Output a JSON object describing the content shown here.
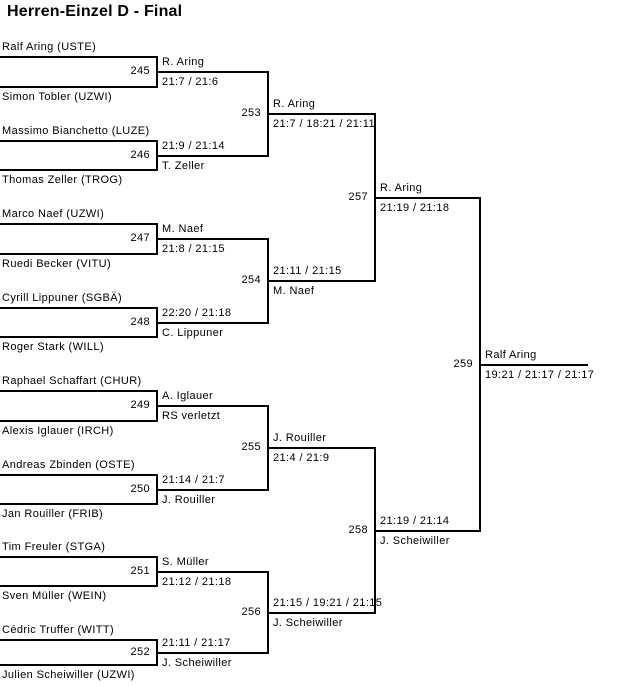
{
  "title": "Herren-Einzel D - Final",
  "colors": {
    "line": "#000000",
    "text": "#000000",
    "background": "#ffffff"
  },
  "bracket": {
    "players": [
      {
        "label": "Ralf Aring (USTE)"
      },
      {
        "label": "Simon Tobler (UZWI)"
      },
      {
        "label": "Massimo Bianchetto (LUZE)"
      },
      {
        "label": "Thomas Zeller (TROG)"
      },
      {
        "label": "Marco Naef (UZWI)"
      },
      {
        "label": "Ruedi Becker (VITU)"
      },
      {
        "label": "Cyrill Lippuner (SGBÄ)"
      },
      {
        "label": "Roger Stark (WILL)"
      },
      {
        "label": "Raphael Schaffart (CHUR)"
      },
      {
        "label": "Alexis Iglauer (IRCH)"
      },
      {
        "label": "Andreas Zbinden (OSTE)"
      },
      {
        "label": "Jan Rouiller (FRIB)"
      },
      {
        "label": "Tim Freuler (STGA)"
      },
      {
        "label": "Sven Müller (WEIN)"
      },
      {
        "label": "Cédric Truffer (WITT)"
      },
      {
        "label": "Julien Scheiwiller (UZWI)"
      }
    ],
    "rounds": [
      {
        "name": "round-of-16",
        "matches": [
          {
            "number": "245",
            "winner": "R. Aring",
            "score": "21:7 / 21:6",
            "winner_pos": "above"
          },
          {
            "number": "246",
            "winner": "T. Zeller",
            "score": "21:9 / 21:14",
            "winner_pos": "below"
          },
          {
            "number": "247",
            "winner": "M. Naef",
            "score": "21:8 / 21:15",
            "winner_pos": "above"
          },
          {
            "number": "248",
            "winner": "C. Lippuner",
            "score": "22:20 / 21:18",
            "winner_pos": "below"
          },
          {
            "number": "249",
            "winner": "A. Iglauer",
            "score": "RS verletzt",
            "winner_pos": "above"
          },
          {
            "number": "250",
            "winner": "J. Rouiller",
            "score": "21:14 / 21:7",
            "winner_pos": "below"
          },
          {
            "number": "251",
            "winner": "S. Müller",
            "score": "21:12 / 21:18",
            "winner_pos": "above"
          },
          {
            "number": "252",
            "winner": "J. Scheiwiller",
            "score": "21:11 / 21:17",
            "winner_pos": "below"
          }
        ]
      },
      {
        "name": "quarterfinals",
        "matches": [
          {
            "number": "253",
            "winner": "R. Aring",
            "score": "21:7 / 18:21 / 21:11",
            "winner_pos": "above"
          },
          {
            "number": "254",
            "winner": "M. Naef",
            "score": "21:11 / 21:15",
            "winner_pos": "below"
          },
          {
            "number": "255",
            "winner": "J. Rouiller",
            "score": "21:4 / 21:9",
            "winner_pos": "above"
          },
          {
            "number": "256",
            "winner": "J. Scheiwiller",
            "score": "21:15 / 19:21 / 21:15",
            "winner_pos": "below"
          }
        ]
      },
      {
        "name": "semifinals",
        "matches": [
          {
            "number": "257",
            "winner": "R. Aring",
            "score": "21:19 / 21:18",
            "winner_pos": "above"
          },
          {
            "number": "258",
            "winner": "J. Scheiwiller",
            "score": "21:19 / 21:14",
            "winner_pos": "below"
          }
        ]
      },
      {
        "name": "final",
        "matches": [
          {
            "number": "259",
            "winner": "Ralf Aring",
            "score": "19:21 / 21:17 / 21:17",
            "winner_pos": "above"
          }
        ]
      }
    ]
  }
}
